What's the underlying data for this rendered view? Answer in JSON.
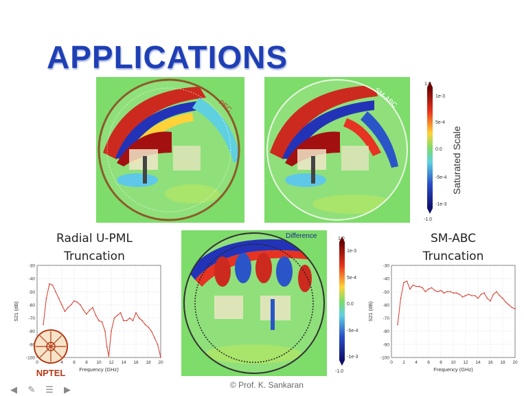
{
  "slide": {
    "title": "APPLICATIONS",
    "credit": "© Prof. K. Sankaran",
    "logo_text": "NPTEL"
  },
  "sim_panels": {
    "pec_label": "PEC",
    "smabc_label": "SM-ABC",
    "difference_label": "Difference"
  },
  "colorbar_top": {
    "title": "Saturated Scale",
    "end_top": "1.0",
    "end_bottom": "-1.0",
    "ticks": [
      "1e-3",
      "5e-4",
      "0.0",
      "-5e-4",
      "-1e-3"
    ]
  },
  "colorbar_mid": {
    "end_top": "1.0",
    "end_bottom": "-1.0",
    "ticks": [
      "1e-3",
      "5e-4",
      "0.0",
      "-5e-4",
      "-1e-3"
    ]
  },
  "captions": {
    "left_line1": "Radial U-PML",
    "left_line2": "Truncation",
    "right_line1": "SM-ABC",
    "right_line2": "Truncation"
  },
  "colors": {
    "title": "#1f3fb5",
    "plot_line": "#d9473b",
    "sim_background": "#7ddc6a"
  },
  "navigation": {
    "icons": [
      "arrow-left-icon",
      "pen-icon",
      "menu-icon",
      "arrow-right-icon"
    ]
  },
  "chart_data": [
    {
      "type": "line",
      "xlabel": "Frequency (GHz)",
      "ylabel": "S21 (dB)",
      "xlim": [
        0,
        20
      ],
      "ylim": [
        -100,
        -30
      ],
      "xticks": [
        0,
        2,
        4,
        6,
        8,
        10,
        12,
        14,
        16,
        18,
        20
      ],
      "yticks": [
        -30,
        -40,
        -50,
        -60,
        -70,
        -80,
        -90,
        -100
      ],
      "grid": true,
      "series": [
        {
          "x": [
            1,
            1.5,
            2,
            2.5,
            3,
            3.5,
            4,
            4.5,
            5,
            5.5,
            6,
            6.5,
            7,
            7.5,
            8,
            8.5,
            9,
            9.5,
            10,
            10.5,
            11,
            11.3,
            11.6,
            12,
            12.5,
            13,
            13.5,
            14,
            14.5,
            15,
            15.5,
            16,
            16.5,
            17,
            17.5,
            18,
            18.5,
            19,
            19.5,
            20
          ],
          "y": [
            -75,
            -55,
            -44,
            -45,
            -50,
            -55,
            -60,
            -65,
            -62,
            -60,
            -57,
            -58,
            -60,
            -64,
            -67,
            -64,
            -62,
            -68,
            -72,
            -73,
            -80,
            -92,
            -99,
            -80,
            -70,
            -68,
            -66,
            -72,
            -72,
            -70,
            -72,
            -66,
            -70,
            -72,
            -75,
            -77,
            -80,
            -85,
            -90,
            -100
          ]
        }
      ]
    },
    {
      "type": "line",
      "xlabel": "Frequency (GHz)",
      "ylabel": "S21 (dB)",
      "xlim": [
        0,
        20
      ],
      "ylim": [
        -100,
        -30
      ],
      "xticks": [
        0,
        2,
        4,
        6,
        8,
        10,
        12,
        14,
        16,
        18,
        20
      ],
      "yticks": [
        -30,
        -40,
        -50,
        -60,
        -70,
        -80,
        -90,
        -100
      ],
      "grid": true,
      "series": [
        {
          "x": [
            1,
            1.5,
            2,
            2.5,
            3,
            3.5,
            4,
            4.5,
            5,
            5.5,
            6,
            6.5,
            7,
            7.5,
            8,
            8.5,
            9,
            9.5,
            10,
            10.5,
            11,
            11.5,
            12,
            12.5,
            13,
            13.5,
            14,
            14.5,
            15,
            15.5,
            16,
            16.5,
            17,
            17.5,
            18,
            18.5,
            19,
            19.5,
            20
          ],
          "y": [
            -75,
            -55,
            -43,
            -42,
            -48,
            -45,
            -46,
            -46,
            -47,
            -50,
            -48,
            -47,
            -49,
            -50,
            -49,
            -51,
            -50,
            -50,
            -51,
            -51,
            -52,
            -54,
            -53,
            -52,
            -53,
            -53,
            -55,
            -52,
            -51,
            -55,
            -57,
            -52,
            -50,
            -53,
            -55,
            -58,
            -60,
            -62,
            -63
          ]
        }
      ]
    }
  ]
}
